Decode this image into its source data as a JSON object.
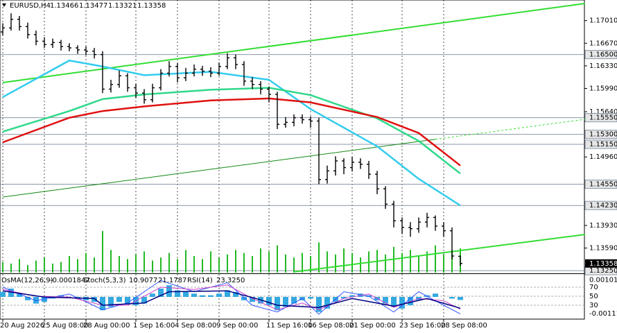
{
  "chart_data": {
    "type": "ohlc",
    "symbol": "EURUSD,H4",
    "categories": [
      "20 Aug 2026",
      null,
      null,
      null,
      null,
      "25 Aug 08:00",
      null,
      null,
      null,
      null,
      "28 Aug 00:00",
      null,
      null,
      null,
      null,
      null,
      "1 Sep 16:00",
      null,
      null,
      null,
      null,
      "4 Sep 08:00",
      null,
      null,
      null,
      null,
      "9 Sep 00:00",
      null,
      null,
      null,
      null,
      null,
      "11 Sep 16:00",
      null,
      null,
      null,
      null,
      "16 Sep 08:00",
      null,
      null,
      null,
      null,
      "21 Sep 00:00",
      null,
      null,
      null,
      null,
      null,
      "23 Sep 16:00",
      null,
      null,
      null,
      null,
      "28 Sep 08:00",
      null,
      null
    ],
    "open": [
      1.1684,
      1.169,
      1.1703,
      1.1692,
      1.168,
      1.167,
      1.1665,
      1.1668,
      1.1662,
      1.166,
      1.1657,
      1.1655,
      1.165,
      1.1598,
      1.1605,
      1.1618,
      1.16,
      1.1592,
      1.1582,
      1.16,
      1.1622,
      1.1632,
      1.1615,
      1.1622,
      1.1628,
      1.1625,
      1.1622,
      1.1632,
      1.1645,
      1.1635,
      1.161,
      1.1605,
      1.1598,
      1.159,
      1.1545,
      1.1548,
      1.1555,
      1.1552,
      1.155,
      1.1462,
      1.1475,
      1.149,
      1.148,
      1.1488,
      1.1485,
      1.147,
      1.1448,
      1.1425,
      1.14,
      1.139,
      1.1388,
      1.1398,
      1.1405,
      1.1392,
      1.1385,
      1.13466
    ],
    "high": [
      1.1697,
      1.1712,
      1.1708,
      1.1698,
      1.1686,
      1.1676,
      1.1674,
      1.1672,
      1.1667,
      1.1664,
      1.1662,
      1.166,
      1.1655,
      1.1612,
      1.1626,
      1.1622,
      1.1606,
      1.1598,
      1.1606,
      1.1628,
      1.164,
      1.1637,
      1.163,
      1.1635,
      1.1633,
      1.1631,
      1.1638,
      1.1652,
      1.165,
      1.164,
      1.1616,
      1.161,
      1.1602,
      1.1594,
      1.1556,
      1.156,
      1.156,
      1.1557,
      1.1555,
      1.1483,
      1.1497,
      1.1494,
      1.1496,
      1.1494,
      1.149,
      1.1475,
      1.1452,
      1.143,
      1.1405,
      1.1398,
      1.1405,
      1.1412,
      1.1408,
      1.1398,
      1.139,
      1.13477
    ],
    "low": [
      1.1679,
      1.1686,
      1.1686,
      1.1674,
      1.1664,
      1.166,
      1.166,
      1.1656,
      1.1655,
      1.1651,
      1.1649,
      1.1644,
      1.1592,
      1.1593,
      1.16,
      1.1594,
      1.1585,
      1.1576,
      1.1578,
      1.1596,
      1.1617,
      1.1608,
      1.161,
      1.1617,
      1.1618,
      1.1616,
      1.1618,
      1.1628,
      1.1628,
      1.1603,
      1.1598,
      1.159,
      1.1578,
      1.1538,
      1.154,
      1.1542,
      1.1546,
      1.154,
      1.1455,
      1.1456,
      1.1468,
      1.147,
      1.1474,
      1.1478,
      1.1463,
      1.144,
      1.1418,
      1.139,
      1.138,
      1.1376,
      1.1382,
      1.139,
      1.1385,
      1.1376,
      1.1342,
      1.13321
    ],
    "close": [
      1.169,
      1.1703,
      1.1692,
      1.168,
      1.167,
      1.1665,
      1.1668,
      1.1662,
      1.166,
      1.1657,
      1.1655,
      1.165,
      1.1598,
      1.1605,
      1.1618,
      1.16,
      1.1592,
      1.1582,
      1.16,
      1.1622,
      1.1632,
      1.1615,
      1.1622,
      1.1628,
      1.1625,
      1.1622,
      1.1632,
      1.1645,
      1.1635,
      1.161,
      1.1605,
      1.1598,
      1.159,
      1.1545,
      1.1548,
      1.1555,
      1.1552,
      1.155,
      1.1462,
      1.1475,
      1.149,
      1.148,
      1.1488,
      1.1485,
      1.147,
      1.1448,
      1.1425,
      1.14,
      1.139,
      1.1388,
      1.1398,
      1.1405,
      1.1392,
      1.1385,
      1.1347,
      1.13358
    ],
    "volume": [
      14,
      12,
      18,
      10,
      16,
      20,
      12,
      14,
      22,
      18,
      26,
      20,
      55,
      30,
      22,
      18,
      24,
      28,
      16,
      20,
      26,
      18,
      30,
      22,
      18,
      28,
      20,
      24,
      30,
      26,
      22,
      32,
      28,
      36,
      24,
      20,
      26,
      22,
      40,
      28,
      24,
      32,
      26,
      20,
      28,
      30,
      24,
      34,
      26,
      30,
      22,
      28,
      36,
      24,
      30,
      32
    ],
    "ylim": [
      1.1322,
      1.1732
    ],
    "yticks": [
      {
        "value": 1.1701,
        "label": "1.17010"
      },
      {
        "value": 1.1667,
        "label": "1.16670"
      },
      {
        "value": 1.1633,
        "label": "1.16330"
      },
      {
        "value": 1.1599,
        "label": "1.15990"
      },
      {
        "value": 1.1564,
        "label": "1.15640"
      },
      {
        "value": 1.1496,
        "label": "1.14960"
      },
      {
        "value": 1.1393,
        "label": "1.13930"
      },
      {
        "value": 1.1359,
        "label": "1.13590"
      }
    ],
    "levels": [
      {
        "value": 1.165,
        "label": "1.16500"
      },
      {
        "value": 1.1555,
        "label": "1.15550"
      },
      {
        "value": 1.153,
        "label": "1.15300"
      },
      {
        "value": 1.1515,
        "label": "1.15150"
      },
      {
        "value": 1.1455,
        "label": "1.14550"
      },
      {
        "value": 1.1423,
        "label": "1.14230"
      },
      {
        "value": 1.1325,
        "label": "1.13250"
      }
    ],
    "bar_color": "#000000",
    "volume_color": "#22b822",
    "overlays": [
      {
        "color": "#33ccee",
        "x": [
          0,
          8,
          12,
          17,
          25,
          32,
          37,
          45,
          50,
          55
        ],
        "values": [
          1.1586,
          1.1641,
          1.1632,
          1.1619,
          1.1624,
          1.1612,
          1.1568,
          1.1512,
          1.1463,
          1.1423
        ]
      },
      {
        "color": "#2fd88a",
        "x": [
          0,
          8,
          12,
          17,
          25,
          32,
          37,
          45,
          50,
          55
        ],
        "values": [
          1.1534,
          1.1565,
          1.1583,
          1.159,
          1.1597,
          1.16,
          1.1589,
          1.1554,
          1.152,
          1.1471
        ]
      },
      {
        "color": "#e01010",
        "x": [
          0,
          8,
          12,
          17,
          25,
          32,
          37,
          45,
          50,
          55
        ],
        "values": [
          1.1518,
          1.1555,
          1.1565,
          1.1572,
          1.1581,
          1.1584,
          1.1578,
          1.1556,
          1.1532,
          1.1483
        ]
      }
    ],
    "trendlines": [
      {
        "color": "#33dd33",
        "x": [
          0,
          70
        ],
        "values": [
          1.16079,
          1.17268
        ]
      },
      {
        "color": "#33dd33",
        "x": [
          35,
          70
        ],
        "values": [
          1.1323,
          1.13794
        ]
      },
      {
        "color": "#118811",
        "x": [
          0,
          70
        ],
        "values": [
          1.14357,
          1.15526
        ],
        "dashed_from": 52
      }
    ],
    "indicator": {
      "osma": {
        "name": "OsMA(12,26,9)",
        "color": "#33a9e0",
        "values": [
          0.0003,
          0.0005,
          0.0002,
          -0.0002,
          -0.0004,
          -0.0003,
          -0.0001,
          0.0001,
          0,
          -0.0001,
          -0.0002,
          -0.0003,
          -0.0008,
          -0.0006,
          -0.0003,
          -0.0004,
          -0.0005,
          -0.0004,
          0.0002,
          0.0005,
          0.0007,
          0.0004,
          0.0003,
          0.0002,
          0.0001,
          0.0001,
          0.0002,
          0.0004,
          0.0003,
          -0.0002,
          -0.0003,
          -0.0004,
          -0.0005,
          -0.0008,
          -0.0006,
          -0.0004,
          -0.0002,
          -0.0001,
          -0.0009,
          -0.0007,
          -0.0003,
          -0.0001,
          0.0001,
          0.0002,
          0.0001,
          -0.0002,
          -0.0004,
          -0.0006,
          -0.0007,
          -0.0005,
          -0.0002,
          0.0001,
          0.0002,
          0,
          -0.0001,
          -0.0001847
        ]
      },
      "stoch_name": "Stoch(5,3,3)",
      "stoch_main": {
        "color": "#3355ff",
        "x": [
          0,
          4,
          8,
          12,
          15,
          19,
          23,
          27,
          30,
          33,
          36,
          38,
          41,
          44,
          47,
          50,
          53,
          55
        ],
        "values": [
          70,
          40,
          55,
          20,
          35,
          85,
          60,
          80,
          30,
          15,
          45,
          10,
          60,
          50,
          15,
          60,
          30,
          10.9077
        ]
      },
      "stoch_signal": {
        "color": "#cc44cc",
        "x": [
          0,
          4,
          8,
          12,
          15,
          19,
          23,
          27,
          30,
          33,
          36,
          38,
          41,
          44,
          47,
          50,
          53,
          55
        ],
        "values": [
          65,
          50,
          48,
          30,
          30,
          70,
          65,
          75,
          45,
          20,
          35,
          20,
          45,
          55,
          25,
          45,
          40,
          21.1787
        ]
      },
      "rsi": {
        "name": "RSI(14)",
        "readout": "23.3250",
        "color": "#000080",
        "x": [
          0,
          5,
          11,
          12,
          17,
          20,
          27,
          31,
          33,
          38,
          42,
          47,
          51,
          55
        ],
        "values": [
          62,
          48,
          45,
          30,
          35,
          60,
          62,
          42,
          30,
          25,
          45,
          28,
          45,
          23.325
        ]
      },
      "osma_ticks": [
        {
          "value": 0.001014,
          "label": "0.001014"
        },
        {
          "value": -0.001113,
          "label": "-0.001113"
        }
      ],
      "levels": [
        70,
        50,
        30
      ]
    }
  }
}
